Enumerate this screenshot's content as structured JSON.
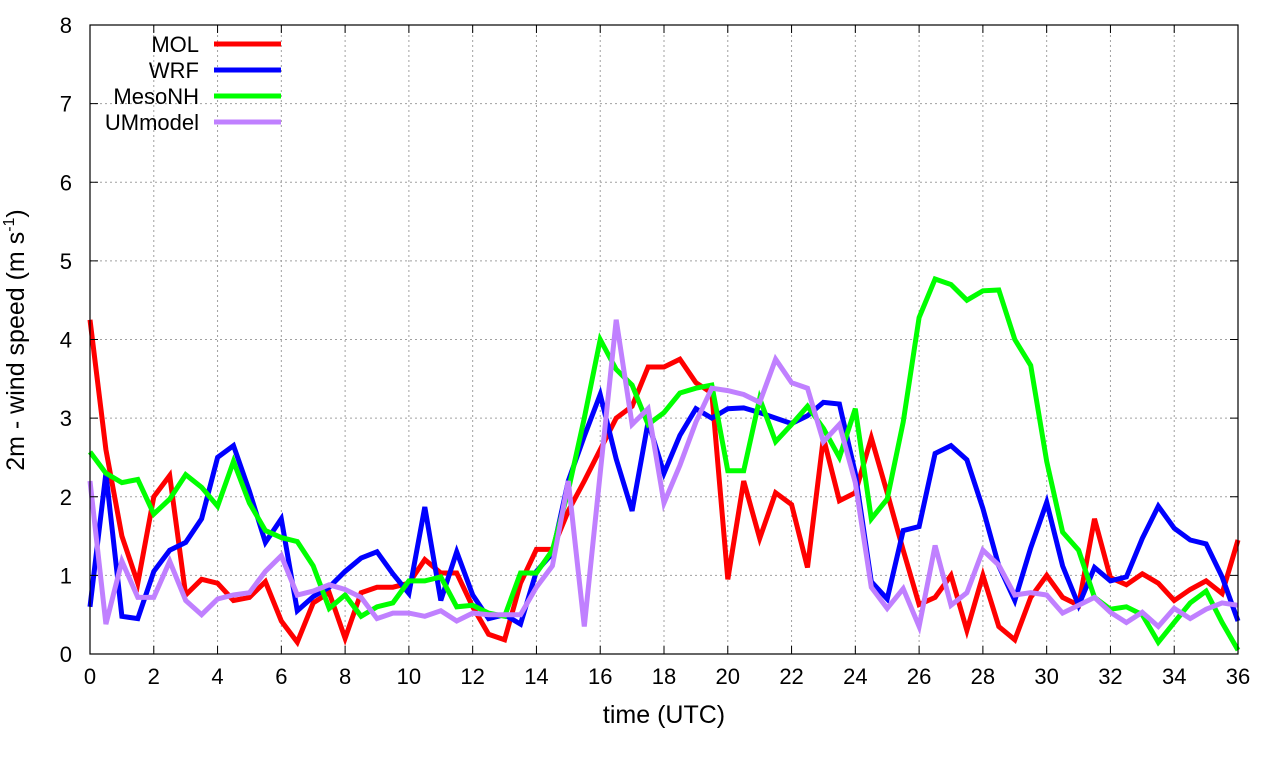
{
  "chart_data": {
    "type": "line",
    "title": "",
    "xlabel": "time (UTC)",
    "ylabel": {
      "prefix": "2m - wind speed  (m s",
      "sup": "-1",
      "suffix": ")"
    },
    "xlim": [
      0,
      36
    ],
    "ylim": [
      0,
      8
    ],
    "xticks": [
      0,
      2,
      4,
      6,
      8,
      10,
      12,
      14,
      16,
      18,
      20,
      22,
      24,
      26,
      28,
      30,
      32,
      34,
      36
    ],
    "yticks": [
      0,
      1,
      2,
      3,
      4,
      5,
      6,
      7,
      8
    ],
    "grid": true,
    "legend_position": "top-left",
    "x": [
      0,
      0.5,
      1,
      1.5,
      2,
      2.5,
      3,
      3.5,
      4,
      4.5,
      5,
      5.5,
      6,
      6.5,
      7,
      7.5,
      8,
      8.5,
      9,
      9.5,
      10,
      10.5,
      11,
      11.5,
      12,
      12.5,
      13,
      13.5,
      14,
      14.5,
      15,
      15.5,
      16,
      16.5,
      17,
      17.5,
      18,
      18.5,
      19,
      19.5,
      20,
      20.5,
      21,
      21.5,
      22,
      22.5,
      23,
      23.5,
      24,
      24.5,
      25,
      25.5,
      26,
      26.5,
      27,
      27.5,
      28,
      28.5,
      29,
      29.5,
      30,
      30.5,
      31,
      31.5,
      32,
      32.5,
      33,
      33.5,
      34,
      34.5,
      35,
      35.5,
      36
    ],
    "series": [
      {
        "name": "MOL",
        "color": "#ff0000",
        "values": [
          4.25,
          2.6,
          1.5,
          0.9,
          2.0,
          2.27,
          0.75,
          0.95,
          0.9,
          0.68,
          0.72,
          0.92,
          0.42,
          0.15,
          0.65,
          0.78,
          0.2,
          0.78,
          0.85,
          0.85,
          0.9,
          1.2,
          1.03,
          1.03,
          0.6,
          0.25,
          0.18,
          0.9,
          1.33,
          1.33,
          1.82,
          2.2,
          2.6,
          3.0,
          3.15,
          3.65,
          3.65,
          3.75,
          3.45,
          3.32,
          0.95,
          2.2,
          1.47,
          2.05,
          1.9,
          1.1,
          2.75,
          1.95,
          2.05,
          2.75,
          2.05,
          1.32,
          0.63,
          0.72,
          1.0,
          0.3,
          1.0,
          0.35,
          0.18,
          0.72,
          1.0,
          0.72,
          0.62,
          1.72,
          0.97,
          0.88,
          1.02,
          0.9,
          0.68,
          0.82,
          0.93,
          0.77,
          1.45
        ]
      },
      {
        "name": "WRF",
        "color": "#0000ff",
        "values": [
          0.6,
          2.3,
          0.48,
          0.45,
          1.05,
          1.32,
          1.42,
          1.72,
          2.5,
          2.65,
          2.07,
          1.42,
          1.72,
          0.55,
          0.73,
          0.85,
          1.05,
          1.22,
          1.3,
          1.02,
          0.77,
          1.87,
          0.68,
          1.3,
          0.75,
          0.45,
          0.5,
          0.38,
          1.05,
          1.28,
          2.2,
          2.77,
          3.3,
          2.48,
          1.82,
          2.95,
          2.3,
          2.78,
          3.12,
          3.0,
          3.12,
          3.13,
          3.07,
          3.0,
          2.93,
          3.03,
          3.2,
          3.18,
          2.3,
          0.92,
          0.7,
          1.57,
          1.62,
          2.55,
          2.65,
          2.47,
          1.85,
          1.12,
          0.68,
          1.35,
          1.93,
          1.12,
          0.62,
          1.1,
          0.93,
          0.98,
          1.47,
          1.88,
          1.6,
          1.45,
          1.4,
          0.98,
          0.42
        ]
      },
      {
        "name": "MesoNH",
        "color": "#00ff00",
        "values": [
          2.57,
          2.3,
          2.18,
          2.22,
          1.78,
          1.97,
          2.28,
          2.12,
          1.88,
          2.45,
          1.92,
          1.57,
          1.48,
          1.43,
          1.12,
          0.58,
          0.75,
          0.48,
          0.6,
          0.65,
          0.93,
          0.93,
          0.98,
          0.6,
          0.62,
          0.52,
          0.48,
          1.03,
          1.03,
          1.32,
          2.08,
          3.0,
          4.0,
          3.62,
          3.42,
          2.92,
          3.07,
          3.32,
          3.38,
          3.42,
          2.33,
          2.33,
          3.25,
          2.7,
          2.92,
          3.15,
          2.87,
          2.5,
          3.12,
          1.72,
          1.97,
          2.95,
          4.28,
          4.77,
          4.7,
          4.5,
          4.62,
          4.63,
          4.0,
          3.67,
          2.45,
          1.55,
          1.32,
          0.72,
          0.57,
          0.6,
          0.5,
          0.15,
          0.4,
          0.65,
          0.8,
          0.4,
          0.05
        ]
      },
      {
        "name": "UMmodel",
        "color": "#c080ff",
        "values": [
          2.2,
          0.38,
          1.18,
          0.72,
          0.72,
          1.18,
          0.68,
          0.5,
          0.7,
          0.75,
          0.78,
          1.05,
          1.25,
          0.75,
          0.8,
          0.88,
          0.82,
          0.72,
          0.45,
          0.52,
          0.52,
          0.48,
          0.55,
          0.42,
          0.52,
          0.5,
          0.5,
          0.5,
          0.85,
          1.12,
          2.2,
          0.35,
          2.3,
          4.25,
          2.92,
          3.12,
          1.92,
          2.4,
          2.95,
          3.38,
          3.35,
          3.3,
          3.2,
          3.75,
          3.45,
          3.38,
          2.7,
          2.92,
          2.18,
          0.85,
          0.58,
          0.83,
          0.35,
          1.38,
          0.62,
          0.78,
          1.32,
          1.13,
          0.75,
          0.78,
          0.75,
          0.52,
          0.62,
          0.72,
          0.53,
          0.4,
          0.53,
          0.35,
          0.58,
          0.45,
          0.57,
          0.65,
          0.62
        ]
      }
    ]
  }
}
